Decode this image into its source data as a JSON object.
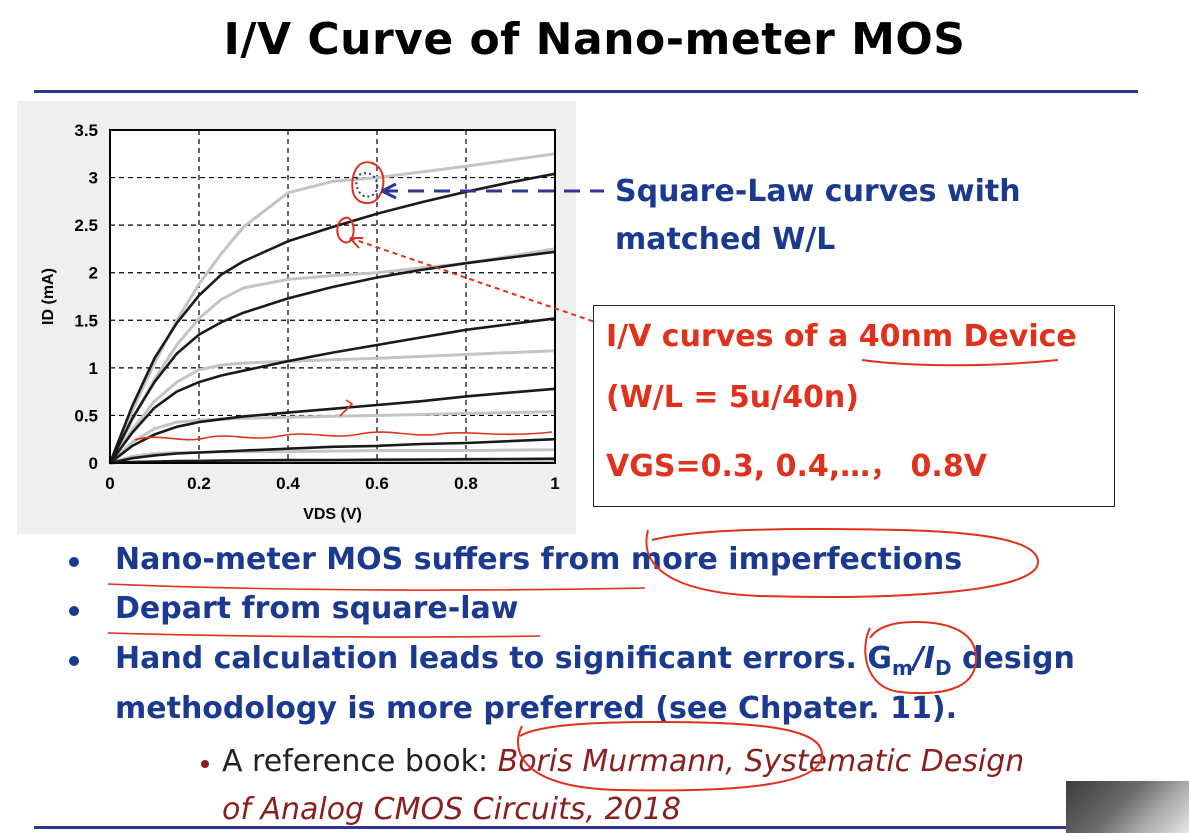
{
  "slide": {
    "title": "I/V Curve of Nano-meter MOS",
    "callout_square_law": [
      "Square-Law curves with",
      "matched W/L"
    ],
    "box": {
      "line1_prefix": "I/V curves of a ",
      "line1_emph": "40nm Device",
      "line2": "(W/L = 5u/40n)",
      "line3": "VGS=0.3, 0.4,…， 0.8V"
    },
    "bullets": [
      "Nano-meter MOS suffers from more imperfections",
      "Depart from square-law",
      "Hand calculation leads to significant errors.",
      "methodology is more preferred (see Chpater. 11)."
    ],
    "gm_prefix": "G",
    "gm_sub": "m",
    "gm_slash": "/I",
    "gm_sub2": "D",
    "gm_suffix": " design",
    "sub_bullet": {
      "prefix": "A reference book: ",
      "ref_line1": "Boris Murmann, Systematic Design",
      "ref_line2": "of Analog CMOS Circuits, 2018"
    },
    "colors": {
      "title": "#000000",
      "blue_text": "#1b3a8f",
      "red_text": "#e0311d",
      "rule": "#2f3590",
      "ink_red": "#e0311d"
    }
  },
  "chart_data": {
    "type": "line",
    "xlabel": "VDS (V)",
    "ylabel": "ID (mA)",
    "xlim": [
      0,
      1
    ],
    "ylim": [
      0,
      3.5
    ],
    "xticks": [
      0,
      0.2,
      0.4,
      0.6,
      0.8,
      1
    ],
    "xtick_labels": [
      "0",
      "0.2",
      "0.4",
      "0.6",
      "0.8",
      "1"
    ],
    "yticks": [
      0,
      0.5,
      1,
      1.5,
      2,
      2.5,
      3,
      3.5
    ],
    "ytick_labels": [
      "0",
      "0.5",
      "1",
      "1.5",
      "2",
      "2.5",
      "3",
      "3.5"
    ],
    "grid": true,
    "series_device": [
      {
        "x": [
          0,
          0.05,
          0.1,
          0.15,
          0.2,
          0.25,
          0.3,
          0.4,
          0.5,
          0.6,
          0.7,
          0.8,
          0.9,
          1.0
        ],
        "y": [
          0,
          0.01,
          0.015,
          0.02,
          0.022,
          0.025,
          0.027,
          0.03,
          0.032,
          0.035,
          0.037,
          0.04,
          0.042,
          0.045
        ]
      },
      {
        "x": [
          0,
          0.05,
          0.1,
          0.15,
          0.2,
          0.25,
          0.3,
          0.4,
          0.5,
          0.6,
          0.7,
          0.8,
          0.9,
          1.0
        ],
        "y": [
          0,
          0.05,
          0.08,
          0.1,
          0.11,
          0.12,
          0.13,
          0.15,
          0.17,
          0.18,
          0.2,
          0.21,
          0.23,
          0.25
        ]
      },
      {
        "x": [
          0,
          0.05,
          0.1,
          0.15,
          0.2,
          0.25,
          0.3,
          0.4,
          0.5,
          0.6,
          0.7,
          0.8,
          0.9,
          1.0
        ],
        "y": [
          0,
          0.18,
          0.3,
          0.38,
          0.43,
          0.46,
          0.49,
          0.53,
          0.57,
          0.61,
          0.65,
          0.7,
          0.74,
          0.78
        ]
      },
      {
        "x": [
          0,
          0.05,
          0.1,
          0.15,
          0.2,
          0.25,
          0.3,
          0.4,
          0.5,
          0.6,
          0.7,
          0.8,
          0.9,
          1.0
        ],
        "y": [
          0,
          0.32,
          0.58,
          0.75,
          0.85,
          0.92,
          0.97,
          1.07,
          1.16,
          1.24,
          1.32,
          1.4,
          1.46,
          1.52
        ]
      },
      {
        "x": [
          0,
          0.05,
          0.1,
          0.15,
          0.2,
          0.25,
          0.3,
          0.4,
          0.5,
          0.6,
          0.7,
          0.8,
          0.9,
          1.0
        ],
        "y": [
          0,
          0.47,
          0.85,
          1.15,
          1.35,
          1.48,
          1.58,
          1.73,
          1.85,
          1.95,
          2.03,
          2.1,
          2.16,
          2.22
        ]
      },
      {
        "x": [
          0,
          0.05,
          0.1,
          0.15,
          0.2,
          0.25,
          0.3,
          0.4,
          0.5,
          0.6,
          0.7,
          0.8,
          0.9,
          1.0
        ],
        "y": [
          0,
          0.6,
          1.1,
          1.47,
          1.76,
          1.98,
          2.12,
          2.33,
          2.48,
          2.62,
          2.74,
          2.85,
          2.95,
          3.04
        ]
      }
    ],
    "series_square_law": [
      {
        "x": [
          0,
          0.02,
          0.04,
          0.06,
          0.08,
          0.1,
          0.2,
          0.4,
          0.6,
          0.8,
          1.0
        ],
        "y": [
          0,
          0.005,
          0.008,
          0.01,
          0.01,
          0.01,
          0.011,
          0.012,
          0.013,
          0.014,
          0.015
        ]
      },
      {
        "x": [
          0,
          0.05,
          0.1,
          0.15,
          0.2,
          0.25,
          0.3,
          0.4,
          0.6,
          0.8,
          1.0
        ],
        "y": [
          0,
          0.07,
          0.1,
          0.11,
          0.11,
          0.12,
          0.12,
          0.12,
          0.13,
          0.13,
          0.14
        ]
      },
      {
        "x": [
          0,
          0.05,
          0.1,
          0.15,
          0.2,
          0.25,
          0.3,
          0.4,
          0.6,
          0.8,
          1.0
        ],
        "y": [
          0,
          0.22,
          0.36,
          0.43,
          0.45,
          0.46,
          0.47,
          0.48,
          0.5,
          0.52,
          0.54
        ]
      },
      {
        "x": [
          0,
          0.05,
          0.1,
          0.15,
          0.2,
          0.25,
          0.3,
          0.4,
          0.6,
          0.8,
          1.0
        ],
        "y": [
          0,
          0.35,
          0.65,
          0.85,
          0.98,
          1.03,
          1.05,
          1.07,
          1.1,
          1.14,
          1.18
        ]
      },
      {
        "x": [
          0,
          0.05,
          0.1,
          0.15,
          0.2,
          0.25,
          0.3,
          0.4,
          0.5,
          0.6,
          0.8,
          1.0
        ],
        "y": [
          0,
          0.45,
          0.88,
          1.24,
          1.52,
          1.72,
          1.84,
          1.93,
          1.97,
          2.0,
          2.1,
          2.25
        ]
      },
      {
        "x": [
          0,
          0.05,
          0.1,
          0.15,
          0.2,
          0.25,
          0.3,
          0.4,
          0.5,
          0.6,
          0.8,
          1.0
        ],
        "y": [
          0,
          0.55,
          1.05,
          1.5,
          1.88,
          2.2,
          2.48,
          2.84,
          2.96,
          3.0,
          3.12,
          3.25
        ]
      }
    ],
    "colors": {
      "device": "#1a1a1a",
      "square_law": "#c4c4c4"
    }
  }
}
